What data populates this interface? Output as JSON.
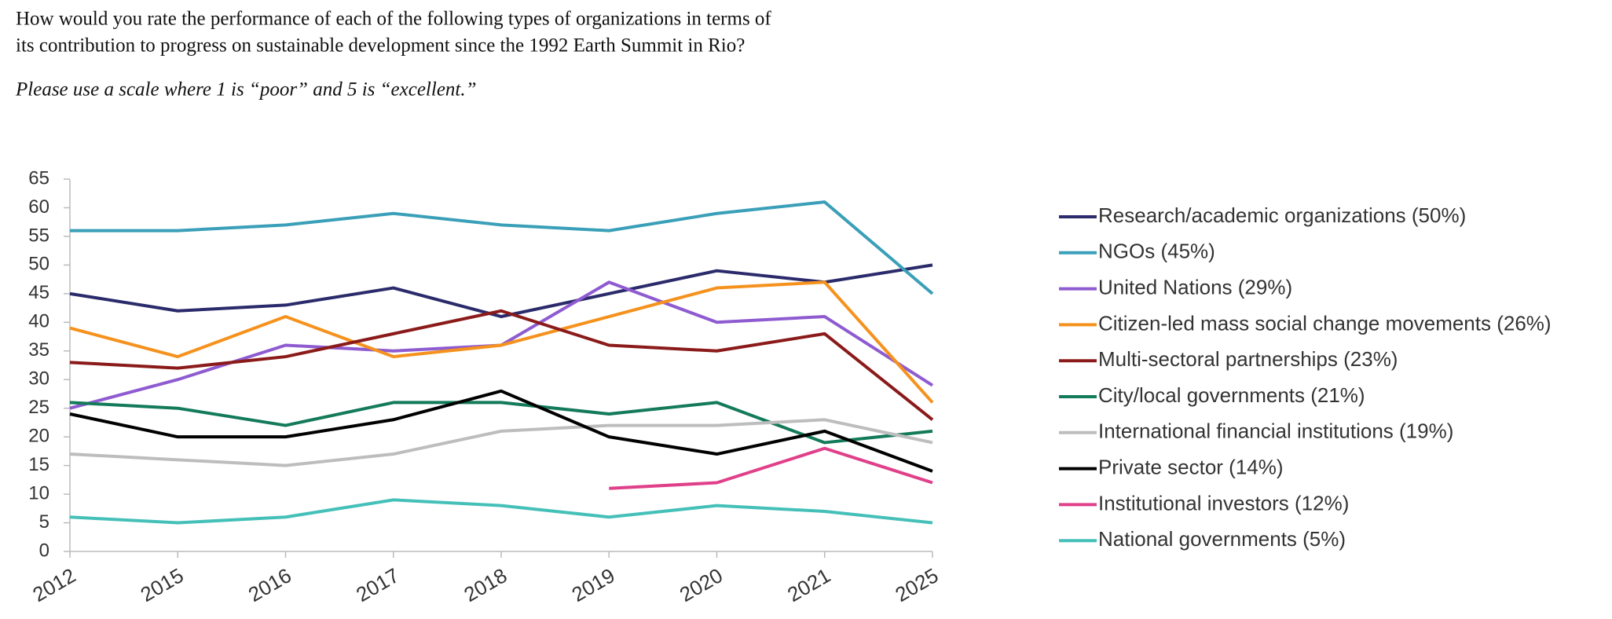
{
  "chart_data": {
    "type": "line",
    "title": [
      "How would you rate the performance of each of the following types of organizations in terms of",
      "its contribution to progress on sustainable development since the 1992 Earth Summit in Rio?"
    ],
    "subtitle": "Please use a scale where 1 is “poor” and 5 is “excellent.”",
    "categories": [
      "2012",
      "2015",
      "2016",
      "2017",
      "2018",
      "2019",
      "2020",
      "2021",
      "2025"
    ],
    "ylim": [
      0,
      65
    ],
    "yticks": [
      0,
      5,
      10,
      15,
      20,
      25,
      30,
      35,
      40,
      45,
      50,
      55,
      60,
      65
    ],
    "grid": false,
    "legend": "right",
    "series": [
      {
        "name": "Research/academic organizations (50%)",
        "color": "#2b2a6b",
        "values": [
          45,
          42,
          43,
          46,
          41,
          45,
          49,
          47,
          50
        ]
      },
      {
        "name": "NGOs (45%)",
        "color": "#3a9fb8",
        "values": [
          56,
          56,
          57,
          59,
          57,
          56,
          59,
          61,
          45
        ]
      },
      {
        "name": "United Nations (29%)",
        "color": "#8e5bd0",
        "values": [
          25,
          30,
          36,
          35,
          36,
          47,
          40,
          41,
          29
        ]
      },
      {
        "name": "Citizen-led mass social change movements (26%)",
        "color": "#f5921e",
        "values": [
          39,
          34,
          41,
          34,
          36,
          41,
          46,
          47,
          26
        ]
      },
      {
        "name": "Multi-sectoral partnerships (23%)",
        "color": "#8b1a1a",
        "values": [
          33,
          32,
          34,
          38,
          42,
          36,
          35,
          38,
          23
        ]
      },
      {
        "name": "City/local governments (21%)",
        "color": "#137a5a",
        "values": [
          26,
          25,
          22,
          26,
          26,
          24,
          26,
          19,
          21
        ]
      },
      {
        "name": "International financial institutions (19%)",
        "color": "#bdbdbd",
        "values": [
          17,
          16,
          15,
          17,
          21,
          22,
          22,
          23,
          19
        ]
      },
      {
        "name": "Private sector (14%)",
        "color": "#000000",
        "values": [
          24,
          20,
          20,
          23,
          28,
          20,
          17,
          21,
          14
        ]
      },
      {
        "name": "Institutional investors (12%)",
        "color": "#e0408a",
        "values": [
          null,
          null,
          null,
          null,
          null,
          11,
          12,
          18,
          12
        ]
      },
      {
        "name": "National governments (5%)",
        "color": "#45c0b8",
        "values": [
          6,
          5,
          6,
          9,
          8,
          6,
          8,
          7,
          5
        ]
      }
    ]
  }
}
